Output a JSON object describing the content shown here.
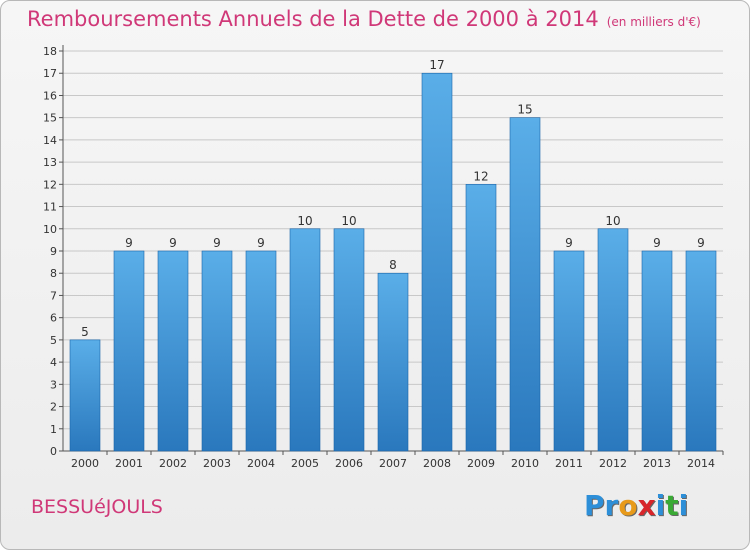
{
  "header": {
    "title": "Remboursements Annuels de la Dette de 2000 à 2014",
    "subtitle": "(en milliers d'€)"
  },
  "footer": {
    "commune": "BESSUéJOULS",
    "logo_letters": [
      {
        "ch": "P",
        "color": "#2d8fd8"
      },
      {
        "ch": "r",
        "color": "#2d8fd8"
      },
      {
        "ch": "o",
        "color": "#e89a1a"
      },
      {
        "ch": "x",
        "color": "#d8252a"
      },
      {
        "ch": "i",
        "color": "#2d8fd8"
      },
      {
        "ch": "t",
        "color": "#3aaa35"
      },
      {
        "ch": "i",
        "color": "#2d8fd8"
      }
    ]
  },
  "colors": {
    "accent": "#d03878",
    "bar_top": "#5aaee8",
    "bar_bottom": "#2a78bd",
    "bar_border": "#1a64a8",
    "grid": "#c8c8c8",
    "axis_text": "#333333"
  },
  "chart_data": {
    "type": "bar",
    "categories": [
      "2000",
      "2001",
      "2002",
      "2003",
      "2004",
      "2005",
      "2006",
      "2007",
      "2008",
      "2009",
      "2010",
      "2011",
      "2012",
      "2013",
      "2014"
    ],
    "values": [
      5,
      9,
      9,
      9,
      9,
      10,
      10,
      8,
      17,
      12,
      15,
      9,
      10,
      9,
      9
    ],
    "ylim": [
      0,
      18
    ],
    "yticks": [
      0,
      1,
      2,
      3,
      4,
      5,
      6,
      7,
      8,
      9,
      10,
      11,
      12,
      13,
      14,
      15,
      16,
      17,
      18
    ],
    "grid": true,
    "data_labels": true
  }
}
